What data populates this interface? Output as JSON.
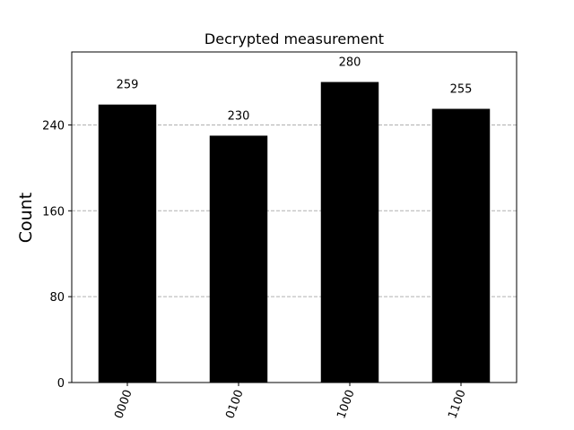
{
  "chart_data": {
    "type": "bar",
    "title": "Decrypted measurement",
    "xlabel": "",
    "ylabel": "Count",
    "categories": [
      "0000",
      "0100",
      "1000",
      "1100"
    ],
    "values": [
      259,
      230,
      280,
      255
    ],
    "data_labels": [
      "259",
      "230",
      "280",
      "255"
    ],
    "ylim": [
      0,
      308
    ],
    "yticks": [
      0,
      80,
      160,
      240
    ],
    "ytick_labels": [
      "0",
      "80",
      "160",
      "240"
    ],
    "xtick_rotation_deg": 70,
    "grid": "horizontal-dashed",
    "legend": "none",
    "bar_color": "#000000",
    "grid_color": "#b0b0b0"
  }
}
